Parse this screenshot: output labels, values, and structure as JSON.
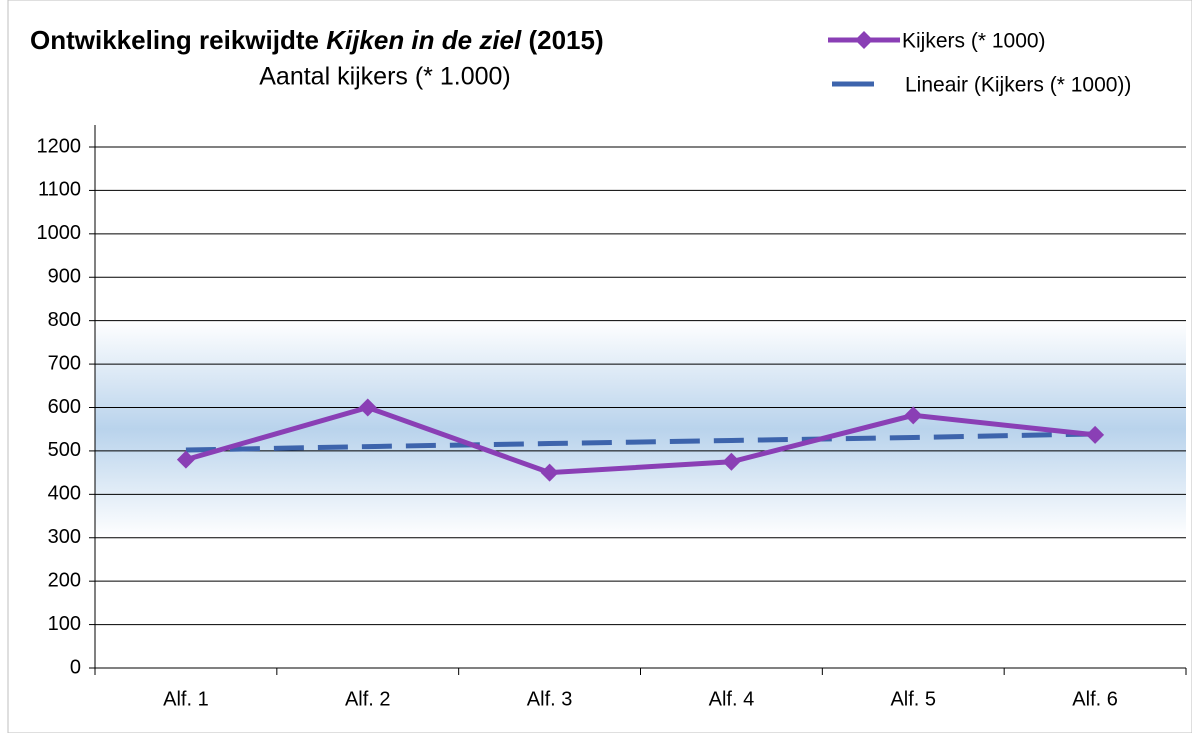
{
  "chart_data": {
    "type": "line",
    "title": [
      "Ontwikkeling reikwijdte ",
      "Kijken in de ziel",
      " (2015)"
    ],
    "subtitle": "Aantal kijkers (* 1.000)",
    "categories": [
      "Alf. 1",
      "Alf. 2",
      "Alf. 3",
      "Alf. 4",
      "Alf. 5",
      "Alf. 6"
    ],
    "series": [
      {
        "name": "Kijkers (* 1000)",
        "color": "#8a3fb5",
        "values": [
          480,
          600,
          450,
          475,
          582,
          537
        ]
      },
      {
        "name": "Lineair (Kijkers (* 1000))",
        "color": "#3d64ac",
        "dashed": true,
        "values": [
          502,
          510,
          517,
          524,
          531,
          539
        ]
      }
    ],
    "ylim": [
      0,
      1200
    ],
    "yticks": [
      0,
      100,
      200,
      300,
      400,
      500,
      600,
      700,
      800,
      900,
      1000,
      1100,
      1200
    ],
    "grid": true,
    "legend": "top-right"
  }
}
